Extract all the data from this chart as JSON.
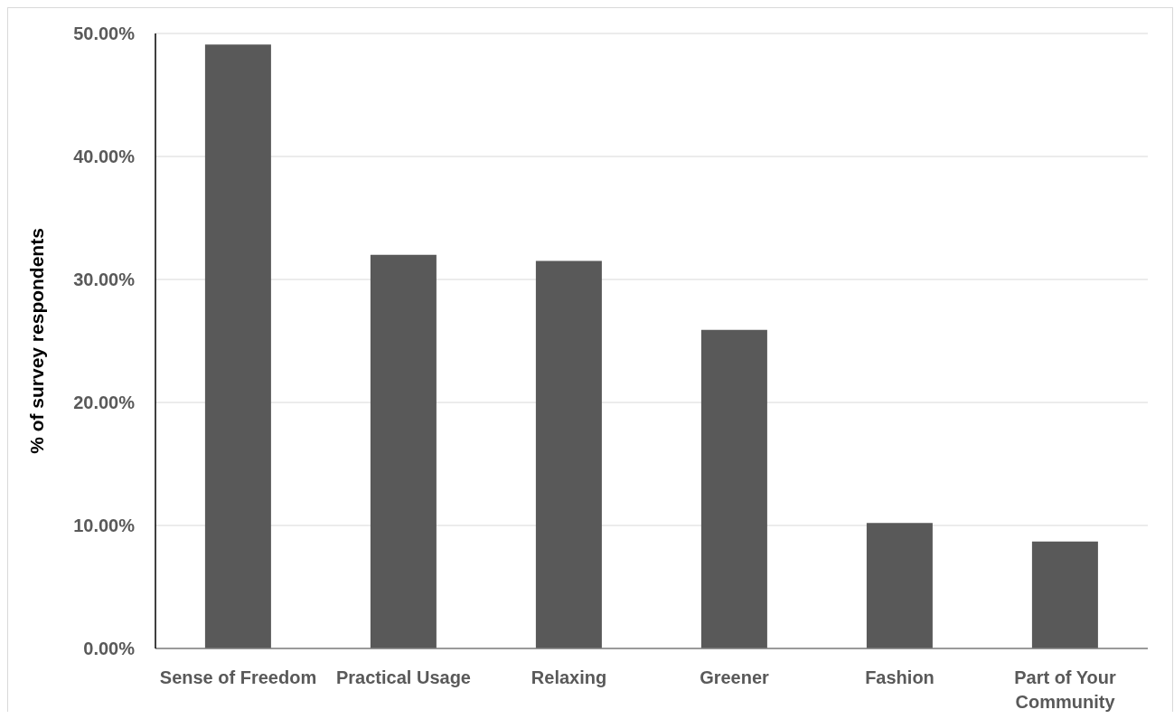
{
  "chart_data": {
    "type": "bar",
    "ylabel": "% of survey respondents",
    "categories": [
      "Sense of Freedom",
      "Practical Usage",
      "Relaxing",
      "Greener",
      "Fashion",
      "Part of Your Community"
    ],
    "values": [
      49.1,
      32.0,
      31.5,
      25.9,
      10.2,
      8.7
    ],
    "color": "#595959",
    "ylim": [
      0,
      50
    ],
    "yticks": [
      {
        "value": 0,
        "label": "0.00%"
      },
      {
        "value": 10,
        "label": "10.00%"
      },
      {
        "value": 20,
        "label": "20.00%"
      },
      {
        "value": 30,
        "label": "30.00%"
      },
      {
        "value": 40,
        "label": "40.00%"
      },
      {
        "value": 50,
        "label": "50.00%"
      }
    ],
    "grid": "y"
  }
}
